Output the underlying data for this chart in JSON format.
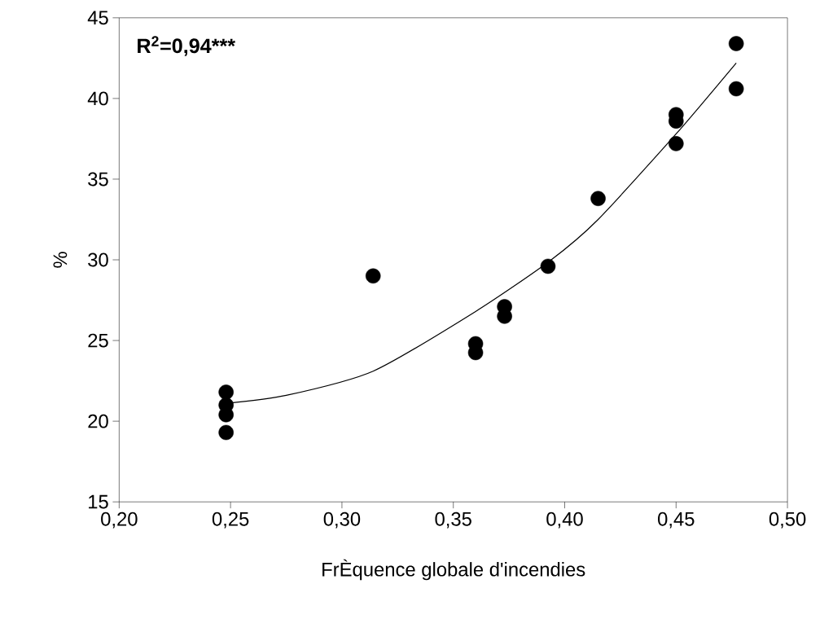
{
  "chart_data": {
    "type": "scatter",
    "xlabel": "FrÈquence globale d'incendies",
    "ylabel": "%",
    "annotations": [
      "R$^{2}$=0,94***"
    ],
    "xlim": [
      0.2,
      0.5
    ],
    "ylim": [
      15,
      45
    ],
    "xticks": [
      {
        "value": 0.2,
        "label": "0,20"
      },
      {
        "value": 0.25,
        "label": "0,25"
      },
      {
        "value": 0.3,
        "label": "0,30"
      },
      {
        "value": 0.35,
        "label": "0,35"
      },
      {
        "value": 0.4,
        "label": "0,40"
      },
      {
        "value": 0.45,
        "label": "0,45"
      },
      {
        "value": 0.5,
        "label": "0,50"
      }
    ],
    "yticks": [
      15,
      20,
      25,
      30,
      35,
      40,
      45
    ],
    "grid": false,
    "marker": "circle",
    "series": [
      {
        "color": "#000000",
        "x": [
          0.248,
          0.248,
          0.248,
          0.248,
          0.314,
          0.36,
          0.36,
          0.373,
          0.373,
          0.3925,
          0.415,
          0.45,
          0.45,
          0.45,
          0.477,
          0.477
        ],
        "values": [
          21.8,
          21.0,
          20.4,
          19.3,
          29.0,
          24.8,
          24.25,
          27.1,
          26.5,
          29.6,
          33.8,
          39.0,
          38.6,
          37.2,
          43.4,
          40.6
        ]
      },
      {
        "type": "line",
        "color": "#000000",
        "marker": "none",
        "line_style": "solid",
        "x": [
          0.248,
          0.275,
          0.314,
          0.36,
          0.393,
          0.415,
          0.45,
          0.477
        ],
        "values": [
          21.1,
          21.6,
          23.1,
          26.8,
          29.9,
          32.5,
          37.8,
          42.2
        ]
      }
    ]
  }
}
